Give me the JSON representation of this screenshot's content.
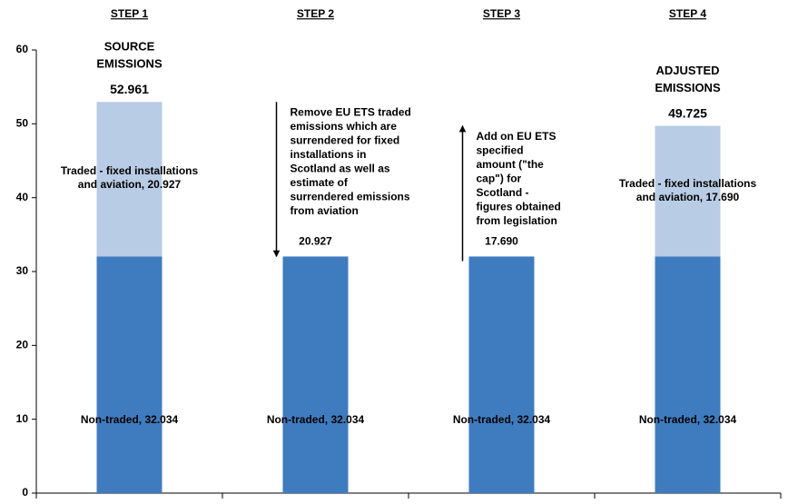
{
  "chart_data": {
    "type": "bar",
    "stacked": true,
    "categories": [
      "STEP 1",
      "STEP 2",
      "STEP 3",
      "STEP 4"
    ],
    "ylim": [
      0,
      60
    ],
    "yticks": [
      0,
      10,
      20,
      30,
      40,
      50,
      60
    ],
    "series": [
      {
        "color": "#3f7cbf",
        "values": [
          32.034,
          32.034,
          32.034,
          32.034
        ],
        "value_labels": [
          "Non-traded, 32.034",
          "Non-traded, 32.034",
          "Non-traded, 32.034",
          "Non-traded, 32.034"
        ]
      },
      {
        "color": "#b8cce6",
        "values": [
          20.927,
          null,
          null,
          17.69
        ],
        "value_labels": [
          "Traded - fixed installations and aviation, 20.927",
          null,
          null,
          "Traded - fixed installations and aviation, 17.690"
        ]
      }
    ],
    "totals": [
      52.961,
      null,
      null,
      49.725
    ],
    "total_labels": [
      "52.961",
      null,
      null,
      "49.725"
    ],
    "headings": [
      [
        "SOURCE",
        "EMISSIONS"
      ],
      null,
      null,
      [
        "ADJUSTED",
        "EMISSIONS"
      ]
    ],
    "changes": [
      null,
      -20.927,
      17.69,
      null
    ],
    "change_labels": [
      null,
      "20.927",
      "17.690",
      null
    ],
    "change_notes": [
      null,
      [
        "Remove EU ETS traded",
        "emissions which are",
        "surrendered for fixed",
        "installations in",
        "Scotland as well as",
        "estimate of",
        "surrendered emissions",
        "from aviation"
      ],
      [
        "Add on EU ETS",
        "specified",
        "amount (\"the",
        "cap\") for",
        "Scotland -",
        "figures obtained",
        "from legislation"
      ],
      null
    ]
  }
}
